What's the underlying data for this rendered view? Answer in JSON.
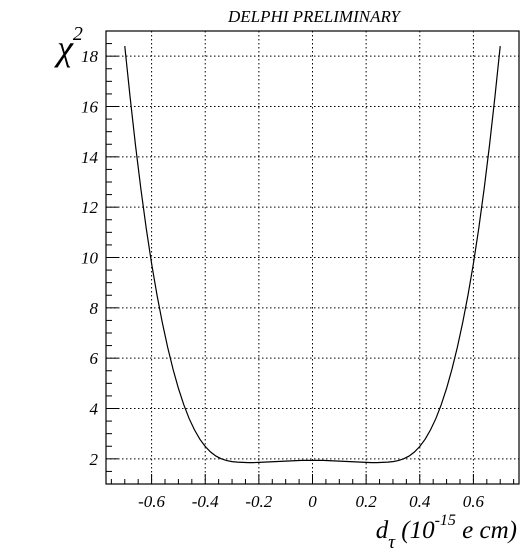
{
  "chart_data": {
    "type": "line",
    "title": "DELPHI PRELIMINARY",
    "xlabel": {
      "base": "d",
      "subscript": "τ",
      "unit_prefix": " (10",
      "exponent": "-15",
      "unit_suffix": " e cm)"
    },
    "ylabel": {
      "base": "χ",
      "exponent": "2"
    },
    "xlim": [
      -0.77,
      0.77
    ],
    "ylim": [
      1.0,
      19.0
    ],
    "grid": true,
    "x_ticks": [
      -0.6,
      -0.4,
      -0.2,
      0,
      0.2,
      0.4,
      0.6
    ],
    "x_tick_labels": [
      "-0.6",
      "-0.4",
      "-0.2",
      "0",
      "0.2",
      "0.4",
      "0.6"
    ],
    "y_ticks": [
      2,
      4,
      6,
      8,
      10,
      12,
      14,
      16,
      18
    ],
    "y_tick_labels": [
      "2",
      "4",
      "6",
      "8",
      "10",
      "12",
      "14",
      "16",
      "18"
    ],
    "series": [
      {
        "x": [
          -0.7,
          -0.68,
          -0.66,
          -0.64,
          -0.62,
          -0.6,
          -0.58,
          -0.56,
          -0.54,
          -0.52,
          -0.5,
          -0.48,
          -0.46,
          -0.44,
          -0.42,
          -0.4,
          -0.38,
          -0.36,
          -0.34,
          -0.32,
          -0.3,
          -0.28,
          -0.26,
          -0.24,
          -0.22,
          -0.2,
          -0.18,
          -0.16,
          -0.14,
          -0.12,
          -0.1,
          -0.08,
          -0.06,
          -0.04,
          -0.02,
          0,
          0.02,
          0.04,
          0.06,
          0.08,
          0.1,
          0.12,
          0.14,
          0.16,
          0.18,
          0.2,
          0.22,
          0.24,
          0.26,
          0.28,
          0.3,
          0.32,
          0.34,
          0.36,
          0.38,
          0.4,
          0.42,
          0.44,
          0.46,
          0.48,
          0.5,
          0.52,
          0.54,
          0.56,
          0.58,
          0.6,
          0.62,
          0.64,
          0.66,
          0.68,
          0.7
        ],
        "y": [
          18.4,
          16.36,
          14.46,
          12.73,
          11.16,
          9.76,
          8.52,
          7.41,
          6.43,
          5.56,
          4.8,
          4.15,
          3.6,
          3.15,
          2.78,
          2.49,
          2.27,
          2.11,
          2.0,
          1.93,
          1.89,
          1.87,
          1.86,
          1.85,
          1.85,
          1.86,
          1.87,
          1.88,
          1.89,
          1.9,
          1.91,
          1.92,
          1.93,
          1.94,
          1.94,
          1.94,
          1.94,
          1.94,
          1.93,
          1.92,
          1.91,
          1.9,
          1.89,
          1.88,
          1.87,
          1.86,
          1.85,
          1.85,
          1.86,
          1.87,
          1.89,
          1.93,
          2.0,
          2.11,
          2.27,
          2.49,
          2.78,
          3.15,
          3.6,
          4.15,
          4.8,
          5.56,
          6.43,
          7.41,
          8.52,
          9.76,
          11.16,
          12.73,
          14.46,
          16.36,
          18.4
        ]
      }
    ]
  }
}
